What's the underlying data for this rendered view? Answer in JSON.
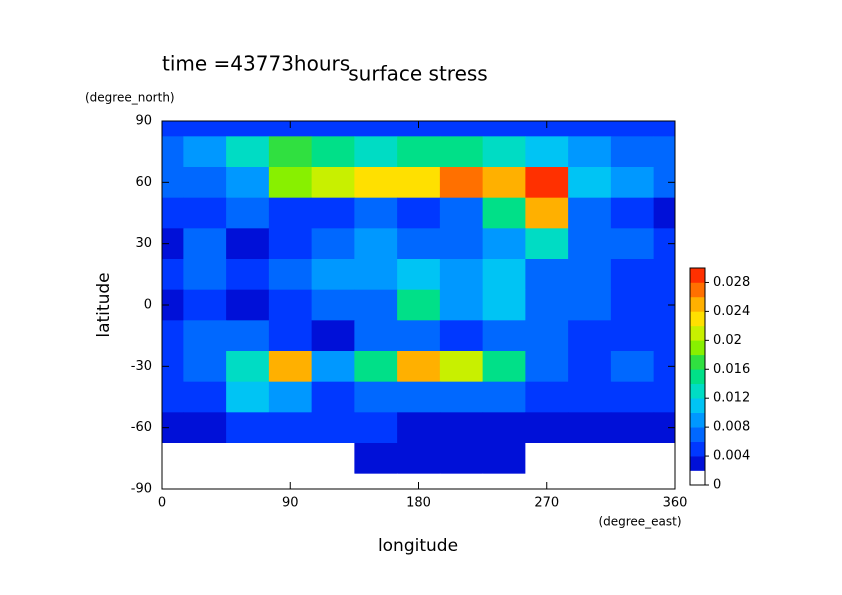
{
  "chart_data": {
    "type": "contour",
    "title": "surface stress",
    "subtitle": "time =43773hours",
    "x_label": "longitude",
    "y_label": "latitude",
    "x_unit": "(degree_east)",
    "y_unit": "(degree_north)",
    "xlim": [
      0,
      360
    ],
    "ylim": [
      -90,
      90
    ],
    "xticks": [
      0,
      90,
      180,
      270,
      360
    ],
    "yticks": [
      -90,
      -60,
      -30,
      0,
      30,
      60,
      90
    ],
    "x": [
      0,
      30,
      60,
      90,
      120,
      150,
      180,
      210,
      240,
      270,
      300,
      330,
      360
    ],
    "y": [
      90,
      75,
      60,
      45,
      30,
      15,
      0,
      -15,
      -30,
      -45,
      -60,
      -75,
      -90
    ],
    "z": [
      [
        0.004,
        0.004,
        0.004,
        0.004,
        0.004,
        0.004,
        0.004,
        0.004,
        0.004,
        0.004,
        0.004,
        0.004,
        0.004
      ],
      [
        0.006,
        0.008,
        0.012,
        0.016,
        0.014,
        0.012,
        0.014,
        0.014,
        0.012,
        0.01,
        0.008,
        0.006,
        0.006
      ],
      [
        0.006,
        0.006,
        0.008,
        0.018,
        0.02,
        0.022,
        0.022,
        0.026,
        0.024,
        0.028,
        0.01,
        0.008,
        0.006
      ],
      [
        0.004,
        0.004,
        0.006,
        0.004,
        0.004,
        0.006,
        0.004,
        0.006,
        0.014,
        0.024,
        0.006,
        0.004,
        0.002
      ],
      [
        0.002,
        0.006,
        0.002,
        0.004,
        0.006,
        0.008,
        0.006,
        0.006,
        0.008,
        0.012,
        0.006,
        0.006,
        0.004
      ],
      [
        0.004,
        0.006,
        0.004,
        0.006,
        0.008,
        0.008,
        0.01,
        0.008,
        0.01,
        0.006,
        0.006,
        0.004,
        0.004
      ],
      [
        0.002,
        0.004,
        0.002,
        0.004,
        0.006,
        0.006,
        0.014,
        0.008,
        0.01,
        0.006,
        0.006,
        0.004,
        0.004
      ],
      [
        0.004,
        0.006,
        0.006,
        0.004,
        0.002,
        0.006,
        0.006,
        0.004,
        0.006,
        0.006,
        0.004,
        0.004,
        0.004
      ],
      [
        0.004,
        0.006,
        0.012,
        0.024,
        0.008,
        0.014,
        0.024,
        0.02,
        0.014,
        0.006,
        0.004,
        0.006,
        0.004
      ],
      [
        0.004,
        0.004,
        0.01,
        0.008,
        0.004,
        0.006,
        0.006,
        0.006,
        0.006,
        0.004,
        0.004,
        0.004,
        0.004
      ],
      [
        0.002,
        0.002,
        0.004,
        0.004,
        0.004,
        0.004,
        0.002,
        0.002,
        0.002,
        0.002,
        0.002,
        0.002,
        0.002
      ],
      [
        0,
        0,
        0,
        0,
        0,
        0.002,
        0.002,
        0.002,
        0.002,
        0,
        0,
        0,
        0
      ],
      [
        0,
        0,
        0,
        0,
        0,
        0,
        0,
        0,
        0,
        0,
        0,
        0,
        0
      ]
    ],
    "clim": [
      0,
      0.03
    ],
    "cticks": [
      0,
      0.004,
      0.008,
      0.012,
      0.016,
      {
        "value": 0.02,
        "label": "0.02"
      },
      0.024,
      0.028
    ],
    "colors": [
      "#ffffff",
      "#0010d8",
      "#0038ff",
      "#0068ff",
      "#0098ff",
      "#00c4f4",
      "#00dcc4",
      "#00e088",
      "#30e040",
      "#88f000",
      "#c8f000",
      "#ffe000",
      "#ffb000",
      "#ff7000",
      "#ff3000"
    ]
  }
}
